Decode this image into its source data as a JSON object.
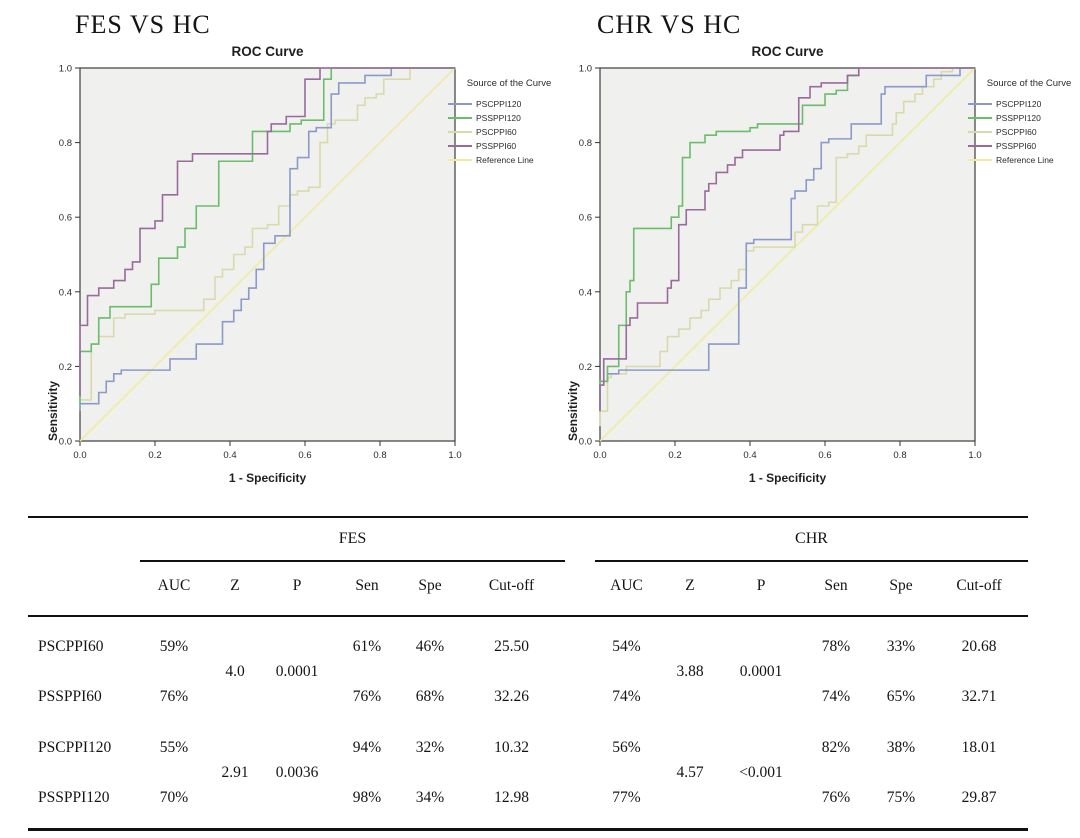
{
  "headings": [
    "FES VS HC",
    "CHR VS HC"
  ],
  "chart_data": [
    {
      "type": "line",
      "title": "ROC Curve",
      "xlabel": "1 - Specificity",
      "ylabel": "Sensitivity",
      "legend_title": "Source of the Curve",
      "legend_position": "right",
      "xlim": [
        0,
        1
      ],
      "ylim": [
        0,
        1
      ],
      "xticks": [
        "0.0",
        "0.2",
        "0.4",
        "0.6",
        "0.8",
        "1.0"
      ],
      "yticks": [
        "0.0",
        "0.2",
        "0.4",
        "0.6",
        "0.8",
        "1.0"
      ],
      "background": "#f0f0ee",
      "grid": false,
      "series": [
        {
          "name": "PSCPPI120",
          "color": "#8b9ac8",
          "z": 2,
          "points": [
            [
              0,
              0.08
            ],
            [
              0.05,
              0.1
            ],
            [
              0.07,
              0.13
            ],
            [
              0.09,
              0.16
            ],
            [
              0.11,
              0.18
            ],
            [
              0.24,
              0.19
            ],
            [
              0.31,
              0.22
            ],
            [
              0.38,
              0.26
            ],
            [
              0.41,
              0.32
            ],
            [
              0.43,
              0.35
            ],
            [
              0.45,
              0.38
            ],
            [
              0.47,
              0.41
            ],
            [
              0.49,
              0.46
            ],
            [
              0.52,
              0.53
            ],
            [
              0.56,
              0.55
            ],
            [
              0.58,
              0.73
            ],
            [
              0.61,
              0.76
            ],
            [
              0.63,
              0.83
            ],
            [
              0.67,
              0.84
            ],
            [
              0.69,
              0.93
            ],
            [
              0.76,
              0.96
            ],
            [
              0.83,
              0.98
            ],
            [
              0.88,
              1.0
            ],
            [
              1,
              1
            ]
          ]
        },
        {
          "name": "PSSPPI120",
          "color": "#6cbc6c",
          "z": 3,
          "points": [
            [
              0,
              0.1
            ],
            [
              0.03,
              0.24
            ],
            [
              0.05,
              0.26
            ],
            [
              0.08,
              0.33
            ],
            [
              0.11,
              0.36
            ],
            [
              0.19,
              0.36
            ],
            [
              0.21,
              0.42
            ],
            [
              0.26,
              0.49
            ],
            [
              0.28,
              0.52
            ],
            [
              0.31,
              0.57
            ],
            [
              0.37,
              0.63
            ],
            [
              0.46,
              0.75
            ],
            [
              0.56,
              0.83
            ],
            [
              0.59,
              0.85
            ],
            [
              0.65,
              0.86
            ],
            [
              0.67,
              0.97
            ],
            [
              0.74,
              1.0
            ],
            [
              1,
              1
            ]
          ]
        },
        {
          "name": "PSCPPI60",
          "color": "#d9daab",
          "z": 1,
          "points": [
            [
              0,
              0.1
            ],
            [
              0.03,
              0.11
            ],
            [
              0.05,
              0.26
            ],
            [
              0.09,
              0.28
            ],
            [
              0.12,
              0.33
            ],
            [
              0.2,
              0.34
            ],
            [
              0.33,
              0.35
            ],
            [
              0.36,
              0.38
            ],
            [
              0.38,
              0.44
            ],
            [
              0.41,
              0.46
            ],
            [
              0.44,
              0.5
            ],
            [
              0.46,
              0.52
            ],
            [
              0.5,
              0.57
            ],
            [
              0.53,
              0.58
            ],
            [
              0.56,
              0.63
            ],
            [
              0.58,
              0.66
            ],
            [
              0.61,
              0.67
            ],
            [
              0.64,
              0.68
            ],
            [
              0.66,
              0.8
            ],
            [
              0.68,
              0.85
            ],
            [
              0.74,
              0.86
            ],
            [
              0.76,
              0.9
            ],
            [
              0.79,
              0.92
            ],
            [
              0.81,
              0.93
            ],
            [
              0.84,
              0.97
            ],
            [
              0.88,
              0.97
            ],
            [
              0.91,
              1.0
            ],
            [
              1,
              1
            ]
          ]
        },
        {
          "name": "PSSPPI60",
          "color": "#9a6a9c",
          "z": 4,
          "points": [
            [
              0,
              0.12
            ],
            [
              0.02,
              0.31
            ],
            [
              0.05,
              0.39
            ],
            [
              0.09,
              0.41
            ],
            [
              0.12,
              0.43
            ],
            [
              0.14,
              0.46
            ],
            [
              0.16,
              0.48
            ],
            [
              0.2,
              0.57
            ],
            [
              0.22,
              0.59
            ],
            [
              0.26,
              0.66
            ],
            [
              0.3,
              0.75
            ],
            [
              0.37,
              0.77
            ],
            [
              0.5,
              0.77
            ],
            [
              0.51,
              0.83
            ],
            [
              0.55,
              0.85
            ],
            [
              0.6,
              0.87
            ],
            [
              0.64,
              0.97
            ],
            [
              0.68,
              1.0
            ],
            [
              1,
              1
            ]
          ]
        },
        {
          "name": "Reference Line",
          "color": "#efeb9f",
          "z": 0,
          "step": false,
          "points": [
            [
              0,
              0
            ],
            [
              1,
              1
            ]
          ]
        }
      ]
    },
    {
      "type": "line",
      "title": "ROC Curve",
      "xlabel": "1 - Specificity",
      "ylabel": "Sensitivity",
      "legend_title": "Source of the Curve",
      "legend_position": "right",
      "xlim": [
        0,
        1
      ],
      "ylim": [
        0,
        1
      ],
      "xticks": [
        "0.0",
        "0.2",
        "0.4",
        "0.6",
        "0.8",
        "1.0"
      ],
      "yticks": [
        "0.0",
        "0.2",
        "0.4",
        "0.6",
        "0.8",
        "1.0"
      ],
      "background": "#f0f0ee",
      "grid": false,
      "series": [
        {
          "name": "PSCPPI120",
          "color": "#8b9ac8",
          "z": 2,
          "points": [
            [
              0,
              0.08
            ],
            [
              0.02,
              0.16
            ],
            [
              0.05,
              0.18
            ],
            [
              0.07,
              0.19
            ],
            [
              0.29,
              0.19
            ],
            [
              0.31,
              0.26
            ],
            [
              0.37,
              0.26
            ],
            [
              0.39,
              0.41
            ],
            [
              0.41,
              0.53
            ],
            [
              0.51,
              0.54
            ],
            [
              0.52,
              0.65
            ],
            [
              0.55,
              0.67
            ],
            [
              0.57,
              0.7
            ],
            [
              0.59,
              0.73
            ],
            [
              0.61,
              0.8
            ],
            [
              0.67,
              0.81
            ],
            [
              0.68,
              0.85
            ],
            [
              0.75,
              0.85
            ],
            [
              0.76,
              0.93
            ],
            [
              0.79,
              0.95
            ],
            [
              0.87,
              0.95
            ],
            [
              0.88,
              0.98
            ],
            [
              0.96,
              0.98
            ],
            [
              1,
              1
            ]
          ]
        },
        {
          "name": "PSSPPI120",
          "color": "#6cbc6c",
          "z": 3,
          "points": [
            [
              0,
              0.08
            ],
            [
              0.02,
              0.16
            ],
            [
              0.05,
              0.2
            ],
            [
              0.07,
              0.31
            ],
            [
              0.08,
              0.4
            ],
            [
              0.09,
              0.43
            ],
            [
              0.12,
              0.57
            ],
            [
              0.19,
              0.57
            ],
            [
              0.21,
              0.6
            ],
            [
              0.22,
              0.63
            ],
            [
              0.24,
              0.76
            ],
            [
              0.28,
              0.8
            ],
            [
              0.31,
              0.82
            ],
            [
              0.4,
              0.83
            ],
            [
              0.42,
              0.84
            ],
            [
              0.54,
              0.85
            ],
            [
              0.6,
              0.9
            ],
            [
              0.63,
              0.93
            ],
            [
              0.66,
              0.94
            ],
            [
              0.69,
              0.98
            ],
            [
              0.73,
              1.0
            ],
            [
              1,
              1
            ]
          ]
        },
        {
          "name": "PSCPPI60",
          "color": "#d9daab",
          "z": 1,
          "points": [
            [
              0,
              0.04
            ],
            [
              0.02,
              0.08
            ],
            [
              0.03,
              0.17
            ],
            [
              0.07,
              0.18
            ],
            [
              0.16,
              0.2
            ],
            [
              0.18,
              0.24
            ],
            [
              0.21,
              0.28
            ],
            [
              0.24,
              0.3
            ],
            [
              0.27,
              0.33
            ],
            [
              0.29,
              0.35
            ],
            [
              0.32,
              0.38
            ],
            [
              0.35,
              0.41
            ],
            [
              0.37,
              0.43
            ],
            [
              0.39,
              0.46
            ],
            [
              0.41,
              0.51
            ],
            [
              0.43,
              0.52
            ],
            [
              0.52,
              0.52
            ],
            [
              0.54,
              0.56
            ],
            [
              0.58,
              0.58
            ],
            [
              0.61,
              0.63
            ],
            [
              0.63,
              0.64
            ],
            [
              0.66,
              0.76
            ],
            [
              0.69,
              0.77
            ],
            [
              0.71,
              0.79
            ],
            [
              0.73,
              0.82
            ],
            [
              0.78,
              0.82
            ],
            [
              0.79,
              0.85
            ],
            [
              0.81,
              0.88
            ],
            [
              0.84,
              0.91
            ],
            [
              0.86,
              0.93
            ],
            [
              0.89,
              0.95
            ],
            [
              0.91,
              0.97
            ],
            [
              0.94,
              0.99
            ],
            [
              0.96,
              1.0
            ],
            [
              1,
              1
            ]
          ]
        },
        {
          "name": "PSSPPI60",
          "color": "#9a6a9c",
          "z": 4,
          "points": [
            [
              0,
              0.08
            ],
            [
              0.01,
              0.15
            ],
            [
              0.03,
              0.22
            ],
            [
              0.07,
              0.22
            ],
            [
              0.08,
              0.31
            ],
            [
              0.1,
              0.33
            ],
            [
              0.11,
              0.37
            ],
            [
              0.18,
              0.37
            ],
            [
              0.19,
              0.41
            ],
            [
              0.21,
              0.43
            ],
            [
              0.23,
              0.58
            ],
            [
              0.25,
              0.62
            ],
            [
              0.28,
              0.62
            ],
            [
              0.29,
              0.67
            ],
            [
              0.31,
              0.69
            ],
            [
              0.34,
              0.72
            ],
            [
              0.36,
              0.74
            ],
            [
              0.38,
              0.76
            ],
            [
              0.41,
              0.78
            ],
            [
              0.48,
              0.78
            ],
            [
              0.49,
              0.82
            ],
            [
              0.53,
              0.83
            ],
            [
              0.56,
              0.92
            ],
            [
              0.59,
              0.95
            ],
            [
              0.66,
              0.96
            ],
            [
              0.69,
              0.98
            ],
            [
              0.71,
              1.0
            ],
            [
              1,
              1
            ]
          ]
        },
        {
          "name": "Reference Line",
          "color": "#efeb9f",
          "z": 0,
          "step": false,
          "points": [
            [
              0,
              0
            ],
            [
              1,
              1
            ]
          ]
        }
      ]
    }
  ],
  "table": {
    "group_headers": [
      "FES",
      "CHR"
    ],
    "columns": [
      "AUC",
      "Z",
      "P",
      "Sen",
      "Spe",
      "Cut-off"
    ],
    "rows": [
      {
        "label": "PSCPPI60",
        "fes": {
          "auc": "59%",
          "sen": "61%",
          "spe": "46%",
          "cutoff": "25.50"
        },
        "chr": {
          "auc": "54%",
          "sen": "78%",
          "spe": "33%",
          "cutoff": "20.68"
        }
      },
      {
        "type": "z",
        "fes": {
          "z": "4.0",
          "p": "0.0001"
        },
        "chr": {
          "z": "3.88",
          "p": "0.0001"
        }
      },
      {
        "label": "PSSPPI60",
        "fes": {
          "auc": "76%",
          "sen": "76%",
          "spe": "68%",
          "cutoff": "32.26"
        },
        "chr": {
          "auc": "74%",
          "sen": "74%",
          "spe": "65%",
          "cutoff": "32.71"
        }
      },
      {
        "label": "PSCPPI120",
        "fes": {
          "auc": "55%",
          "sen": "94%",
          "spe": "32%",
          "cutoff": "10.32"
        },
        "chr": {
          "auc": "56%",
          "sen": "82%",
          "spe": "38%",
          "cutoff": "18.01"
        }
      },
      {
        "type": "z",
        "fes": {
          "z": "2.91",
          "p": "0.0036"
        },
        "chr": {
          "z": "4.57",
          "p": "<0.001"
        }
      },
      {
        "label": "PSSPPI120",
        "fes": {
          "auc": "70%",
          "sen": "98%",
          "spe": "34%",
          "cutoff": "12.98"
        },
        "chr": {
          "auc": "77%",
          "sen": "76%",
          "spe": "75%",
          "cutoff": "29.87"
        }
      }
    ]
  }
}
